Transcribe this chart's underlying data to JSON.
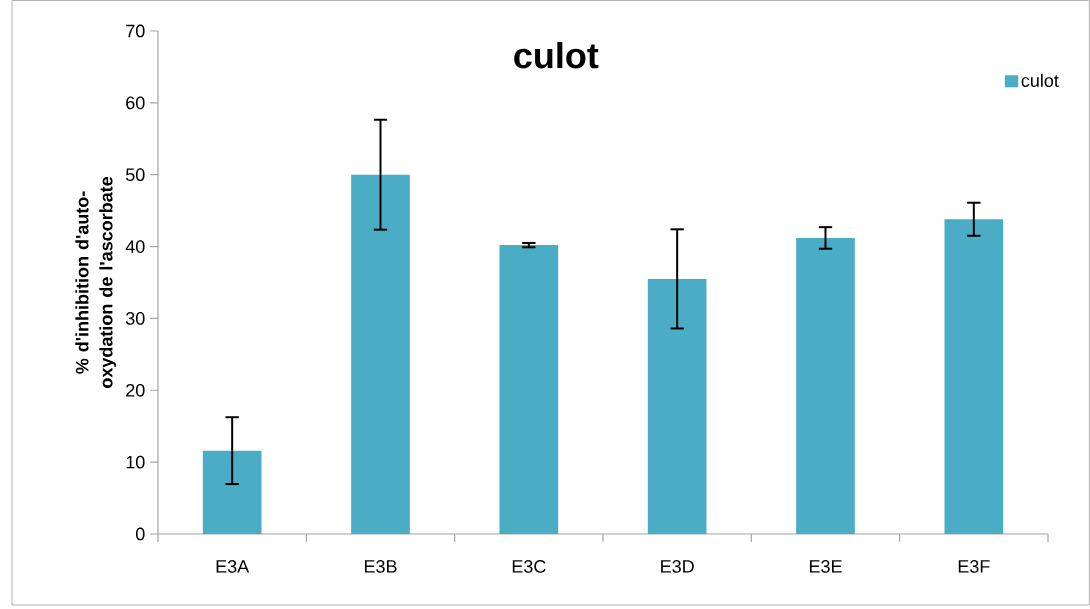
{
  "chart_data": {
    "type": "bar",
    "title": "culot",
    "ylabel": "% d'inhibition d'auto-oxydation de l'ascorbate",
    "categories": [
      "E3A",
      "E3B",
      "E3C",
      "E3D",
      "E3E",
      "E3F"
    ],
    "series": [
      {
        "name": "culot",
        "color": "#4bacc6",
        "values": [
          11.6,
          50.0,
          40.2,
          35.5,
          41.2,
          43.8
        ],
        "errors": [
          4.65,
          7.65,
          0.3,
          6.9,
          1.5,
          2.3
        ]
      }
    ],
    "ylim": [
      0,
      70
    ],
    "yticks": [
      0,
      10,
      20,
      30,
      40,
      50,
      60,
      70
    ],
    "grid": false,
    "legend": "top right"
  }
}
